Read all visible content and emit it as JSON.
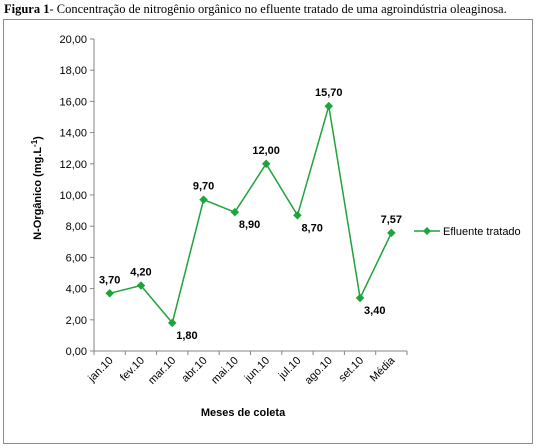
{
  "caption": {
    "label": "Figura 1",
    "text": "- Concentração de nitrogênio orgânico no efluente tratado de uma agroindústria oleaginosa."
  },
  "chart_data": {
    "type": "line",
    "categories": [
      "jan.10",
      "fev.10",
      "mar.10",
      "abr.10",
      "mai.10",
      "jun.10",
      "jul.10",
      "ago.10",
      "set.10",
      "Média"
    ],
    "series": [
      {
        "name": "Efluente tratado",
        "values": [
          3.7,
          4.2,
          1.8,
          9.7,
          8.9,
          12.0,
          8.7,
          15.7,
          3.4,
          7.57
        ],
        "data_labels": [
          "3,70",
          "4,20",
          "1,80",
          "9,70",
          "8,90",
          "12,00",
          "8,70",
          "15,70",
          "3,40",
          "7,57"
        ],
        "color": "#1fa33c",
        "marker": "diamond"
      }
    ],
    "xlabel": "Meses de coleta",
    "ylabel": "N-Orgânico  (mg.L",
    "ylabel_sup": "-1",
    "ylabel_end": ")",
    "ylim": [
      0,
      20
    ],
    "yticks": [
      "0,00",
      "2,00",
      "4,00",
      "6,00",
      "8,00",
      "10,00",
      "12,00",
      "14,00",
      "16,00",
      "18,00",
      "20,00"
    ],
    "grid": false,
    "legend_position": "right"
  }
}
